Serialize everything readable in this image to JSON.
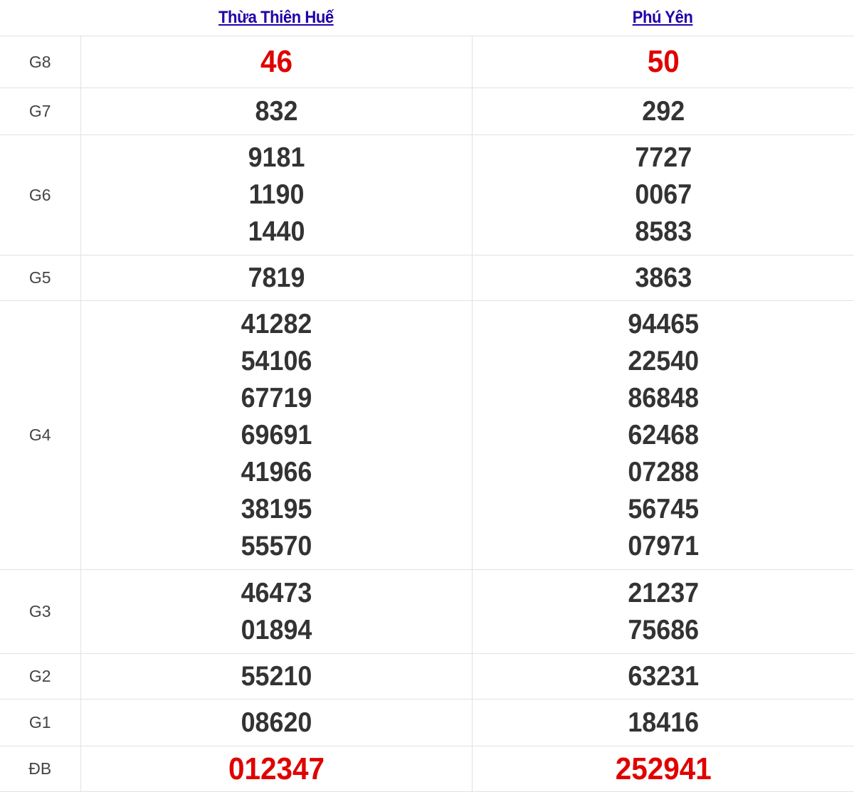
{
  "header": {
    "provinces": [
      "Thừa Thiên Huế",
      "Phú Yên"
    ]
  },
  "accent_colors": {
    "link": "#2200aa",
    "highlight": "#e00000",
    "number": "#333333"
  },
  "rows": [
    {
      "label": "G8",
      "highlight": true,
      "values": [
        [
          "46"
        ],
        [
          "50"
        ]
      ]
    },
    {
      "label": "G7",
      "values": [
        [
          "832"
        ],
        [
          "292"
        ]
      ]
    },
    {
      "label": "G6",
      "values": [
        [
          "9181",
          "1190",
          "1440"
        ],
        [
          "7727",
          "0067",
          "8583"
        ]
      ]
    },
    {
      "label": "G5",
      "values": [
        [
          "7819"
        ],
        [
          "3863"
        ]
      ]
    },
    {
      "label": "G4",
      "values": [
        [
          "41282",
          "54106",
          "67719",
          "69691",
          "41966",
          "38195",
          "55570"
        ],
        [
          "94465",
          "22540",
          "86848",
          "62468",
          "07288",
          "56745",
          "07971"
        ]
      ]
    },
    {
      "label": "G3",
      "values": [
        [
          "46473",
          "01894"
        ],
        [
          "21237",
          "75686"
        ]
      ]
    },
    {
      "label": "G2",
      "values": [
        [
          "55210"
        ],
        [
          "63231"
        ]
      ]
    },
    {
      "label": "G1",
      "values": [
        [
          "08620"
        ],
        [
          "18416"
        ]
      ]
    },
    {
      "label": "ĐB",
      "highlight": true,
      "values": [
        [
          "012347"
        ],
        [
          "252941"
        ]
      ]
    }
  ]
}
